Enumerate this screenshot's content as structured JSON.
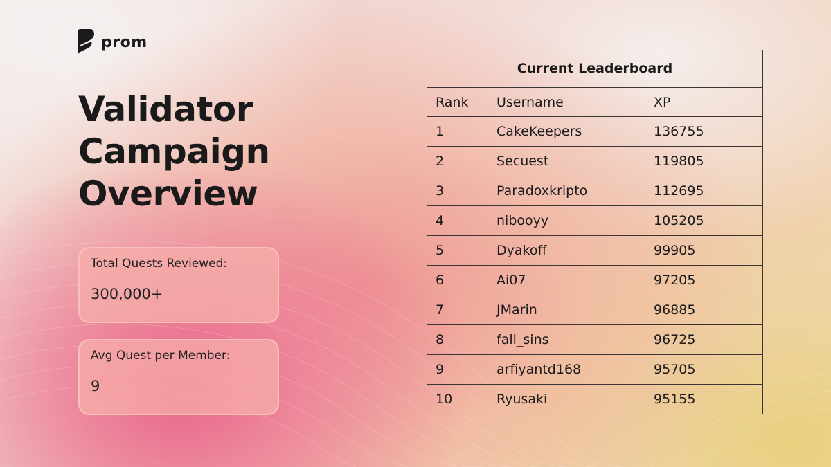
{
  "brand": {
    "name": "prom",
    "logo_icon": "prom-logo-icon"
  },
  "title": {
    "line1": "Validator",
    "line2": "Campaign",
    "line3": "Overview"
  },
  "stats": [
    {
      "label": "Total Quests Reviewed:",
      "value": "300,000+"
    },
    {
      "label": "Avg Quest per Member:",
      "value": "9"
    }
  ],
  "leaderboard": {
    "caption": "Current Leaderboard",
    "columns": [
      "Rank",
      "Username",
      "XP"
    ],
    "rows": [
      [
        "1",
        "CakeKeepers",
        "136755"
      ],
      [
        "2",
        "Secuest",
        "119805"
      ],
      [
        "3",
        "Paradoxkripto",
        "112695"
      ],
      [
        "4",
        "nibooyy",
        "105205"
      ],
      [
        "5",
        "Dyakoff",
        "99905"
      ],
      [
        "6",
        "Ai07",
        "97205"
      ],
      [
        "7",
        "JMarin",
        "96885"
      ],
      [
        "8",
        "fall_sins",
        "96725"
      ],
      [
        "9",
        "arfiyantd168",
        "95705"
      ],
      [
        "10",
        "Ryusaki",
        "95155"
      ]
    ]
  },
  "colors": {
    "text": "#1a1a1a",
    "pink": "#e8608a",
    "yellow": "#e8ce78"
  }
}
